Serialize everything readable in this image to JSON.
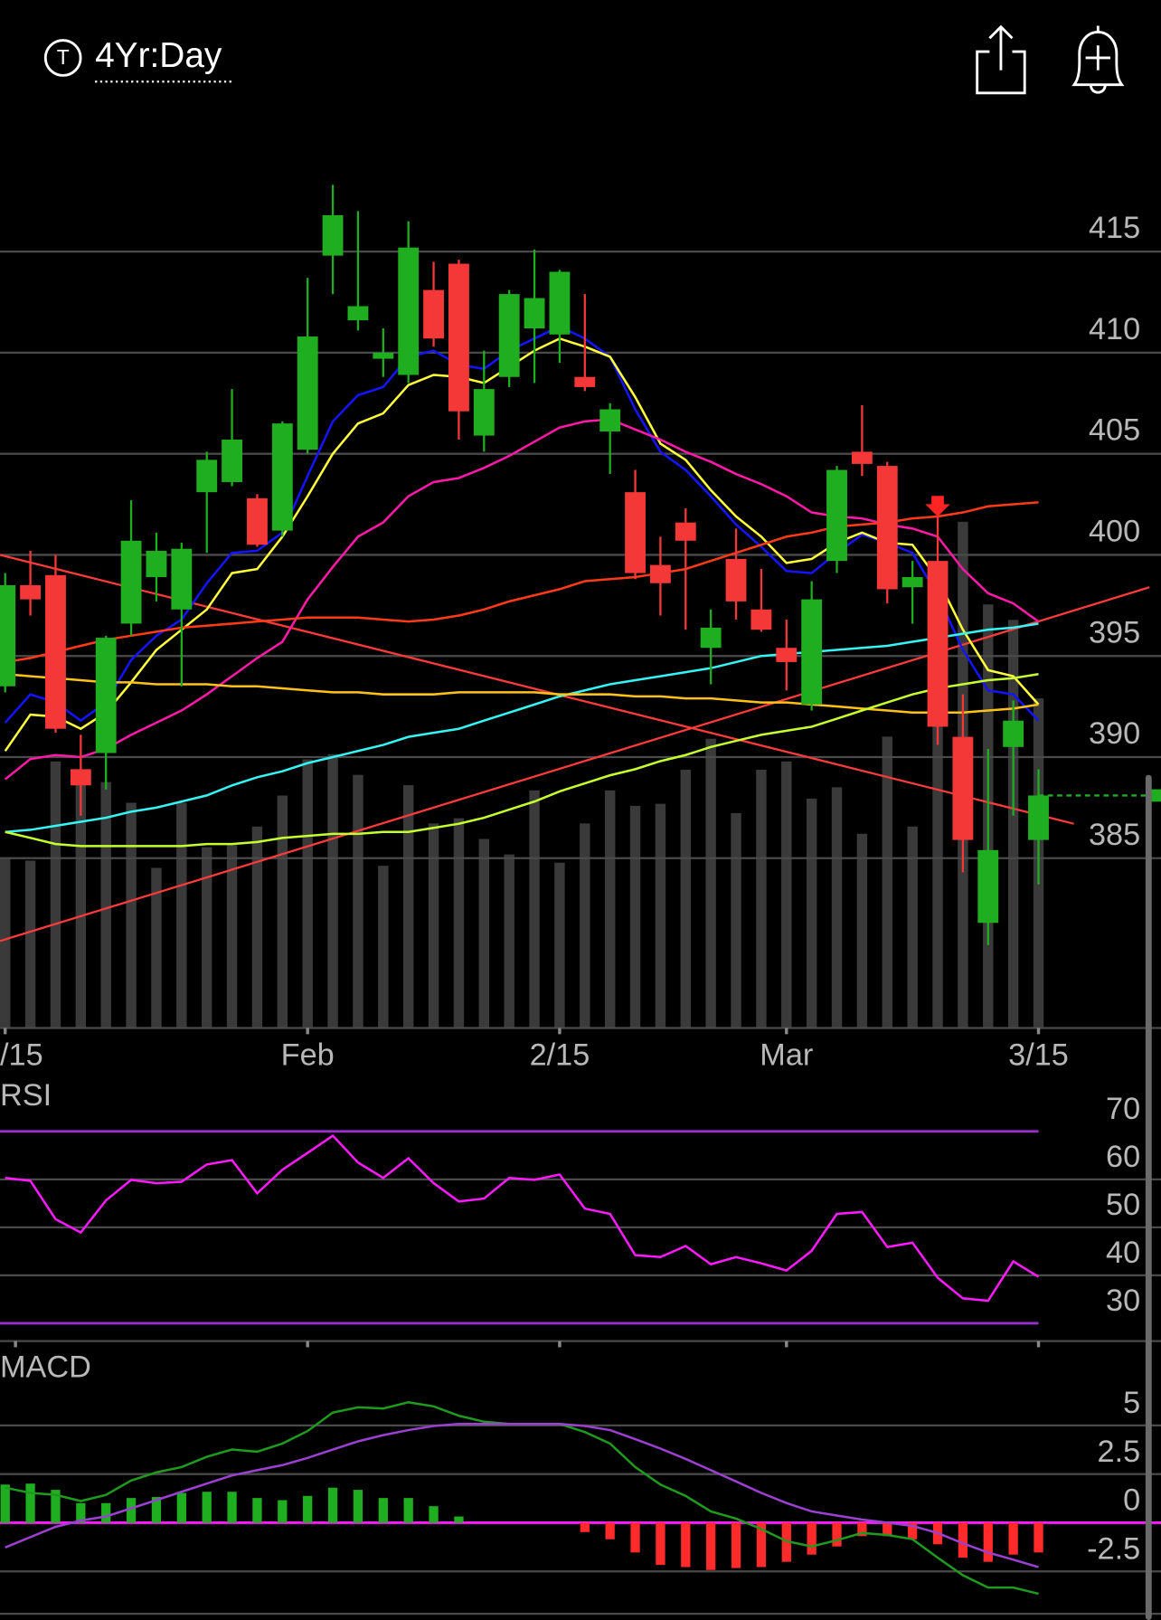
{
  "header": {
    "icon_letter": "T",
    "period": "4Yr:Day"
  },
  "chart_data": [
    {
      "type": "candlestick",
      "categories": [
        "/15",
        null,
        null,
        null,
        null,
        null,
        null,
        null,
        null,
        null,
        null,
        null,
        "Feb",
        null,
        null,
        null,
        null,
        null,
        null,
        null,
        null,
        null,
        "2/15",
        null,
        null,
        null,
        null,
        null,
        null,
        null,
        null,
        "Mar",
        null,
        null,
        null,
        null,
        null,
        null,
        null,
        null,
        null,
        "3/15"
      ],
      "open": [
        393.5,
        398.5,
        399.0,
        389.4,
        390.2,
        396.6,
        398.9,
        397.3,
        403.1,
        403.6,
        402.8,
        401.2,
        405.2,
        414.8,
        411.6,
        409.7,
        408.9,
        413.1,
        414.4,
        405.9,
        408.8,
        411.2,
        410.9,
        408.8,
        406.1,
        403.1,
        399.5,
        401.6,
        395.4,
        399.8,
        397.3,
        395.4,
        392.6,
        399.7,
        405.1,
        404.4,
        398.4,
        399.7,
        391.0,
        381.8,
        390.5,
        385.9
      ],
      "high": [
        399.1,
        400.2,
        400.0,
        391.1,
        396.0,
        402.7,
        401.1,
        400.6,
        405.1,
        408.2,
        403.0,
        406.6,
        413.7,
        418.3,
        417.0,
        411.2,
        416.5,
        414.5,
        414.6,
        410.1,
        413.1,
        415.1,
        414.1,
        412.9,
        407.5,
        404.2,
        400.9,
        402.3,
        397.3,
        401.3,
        399.3,
        396.8,
        398.7,
        404.4,
        407.4,
        404.6,
        399.7,
        402.8,
        393.1,
        390.4,
        392.8,
        389.4
      ],
      "low": [
        393.2,
        397.0,
        391.2,
        387.1,
        388.4,
        396.0,
        397.7,
        393.5,
        400.1,
        403.4,
        400.4,
        400.9,
        405.0,
        412.9,
        411.1,
        408.8,
        408.5,
        410.3,
        405.7,
        405.1,
        408.3,
        408.5,
        409.5,
        408.1,
        404.0,
        398.8,
        397.0,
        396.3,
        393.6,
        396.8,
        396.2,
        393.3,
        392.3,
        399.1,
        403.9,
        397.6,
        396.6,
        390.6,
        384.3,
        380.7,
        387.1,
        383.7
      ],
      "close": [
        398.5,
        397.8,
        391.4,
        388.6,
        395.9,
        400.7,
        400.2,
        400.3,
        404.7,
        405.7,
        400.5,
        406.5,
        410.8,
        416.8,
        412.3,
        410.0,
        415.2,
        410.7,
        407.1,
        408.2,
        412.9,
        412.7,
        414.0,
        408.3,
        407.2,
        399.1,
        398.6,
        400.7,
        396.4,
        397.7,
        396.3,
        394.7,
        397.8,
        404.2,
        404.5,
        398.3,
        398.9,
        391.5,
        385.9,
        385.4,
        391.8,
        388.1
      ],
      "up_color": "#1fae1f",
      "down_color": "#f43838",
      "volume": [
        165,
        162,
        258,
        238,
        238,
        218,
        155,
        218,
        175,
        177,
        195,
        225,
        260,
        265,
        245,
        157,
        235,
        198,
        203,
        183,
        168,
        230,
        160,
        198,
        230,
        215,
        217,
        250,
        280,
        208,
        250,
        258,
        222,
        233,
        188,
        282,
        195,
        295,
        490,
        410,
        395,
        319
      ],
      "volume_lim": [
        0,
        865
      ],
      "volume_color": "#3a3a3a",
      "series": [
        {
          "color": "#1414ff",
          "values": [
            391.7,
            393.1,
            392.7,
            391.8,
            392.7,
            394.8,
            396.0,
            396.8,
            398.6,
            400.1,
            400.2,
            401.1,
            403.9,
            406.6,
            407.9,
            408.3,
            409.8,
            410.1,
            409.4,
            409.2,
            410.1,
            410.7,
            411.3,
            410.7,
            409.8,
            407.2,
            405.1,
            404.2,
            402.9,
            401.5,
            400.4,
            399.2,
            399.1,
            400.1,
            401.0,
            400.6,
            400.1,
            398.0,
            395.3,
            393.3,
            393.1,
            391.8
          ]
        },
        {
          "color": "#ffff3c",
          "values": [
            390.3,
            392.1,
            392.0,
            391.4,
            392.2,
            393.7,
            395.3,
            396.3,
            397.3,
            399.1,
            399.3,
            400.9,
            402.9,
            405.0,
            406.5,
            407.0,
            408.4,
            408.9,
            408.8,
            408.5,
            409.3,
            410.1,
            410.7,
            410.3,
            409.8,
            407.8,
            405.5,
            404.7,
            403.2,
            401.9,
            400.9,
            399.6,
            399.8,
            400.6,
            401.1,
            400.6,
            400.5,
            398.8,
            396.3,
            394.3,
            394.0,
            392.6
          ]
        },
        {
          "color": "#ff1aa8",
          "values": [
            388.9,
            389.9,
            390.1,
            390.0,
            390.4,
            391.1,
            391.7,
            392.3,
            393.1,
            394.0,
            394.9,
            395.7,
            397.8,
            399.4,
            400.9,
            401.6,
            402.9,
            403.6,
            403.8,
            404.3,
            404.9,
            405.6,
            406.3,
            406.6,
            406.7,
            406.2,
            405.7,
            405.1,
            404.6,
            404.0,
            403.5,
            402.9,
            402.1,
            401.9,
            401.8,
            401.5,
            401.3,
            400.9,
            399.3,
            398.1,
            397.6,
            396.7
          ]
        },
        {
          "color": "#ff3a18",
          "values": [
            394.7,
            394.9,
            395.2,
            395.5,
            395.8,
            396.0,
            396.2,
            396.4,
            396.5,
            396.6,
            396.7,
            396.8,
            396.9,
            396.9,
            396.9,
            396.8,
            396.7,
            396.8,
            397.0,
            397.3,
            397.7,
            398.0,
            398.3,
            398.7,
            398.8,
            398.9,
            399.1,
            399.3,
            399.7,
            400.1,
            400.5,
            400.9,
            401.1,
            401.4,
            401.5,
            401.6,
            401.8,
            401.9,
            402.1,
            402.4,
            402.5,
            402.6
          ]
        },
        {
          "color": "#36f4f4",
          "values": [
            386.3,
            386.4,
            386.6,
            386.8,
            387.0,
            387.3,
            387.5,
            387.8,
            388.1,
            388.6,
            389.0,
            389.3,
            389.7,
            390.0,
            390.3,
            390.6,
            391.0,
            391.2,
            391.4,
            391.8,
            392.2,
            392.6,
            393.0,
            393.3,
            393.6,
            393.8,
            394.0,
            394.2,
            394.4,
            394.7,
            395.0,
            395.1,
            395.2,
            395.3,
            395.4,
            395.5,
            395.7,
            395.9,
            396.1,
            396.3,
            396.4,
            396.6
          ]
        },
        {
          "color": "#ffc21a",
          "values": [
            394.1,
            394.0,
            393.9,
            393.8,
            393.7,
            393.7,
            393.6,
            393.6,
            393.6,
            393.5,
            393.5,
            393.4,
            393.3,
            393.2,
            393.2,
            393.1,
            393.1,
            393.1,
            393.2,
            393.2,
            393.2,
            393.2,
            393.1,
            393.1,
            393.1,
            393.0,
            393.0,
            392.9,
            392.9,
            392.8,
            392.7,
            392.7,
            392.6,
            392.5,
            392.4,
            392.3,
            392.2,
            392.2,
            392.2,
            392.3,
            392.4,
            392.6
          ]
        },
        {
          "color": "#c6ff30",
          "values": [
            386.3,
            386.0,
            385.7,
            385.6,
            385.6,
            385.6,
            385.6,
            385.6,
            385.7,
            385.7,
            385.8,
            386.0,
            386.1,
            386.2,
            386.2,
            386.3,
            386.3,
            386.5,
            386.7,
            387.0,
            387.4,
            387.8,
            388.3,
            388.7,
            389.1,
            389.4,
            389.8,
            390.1,
            390.5,
            390.8,
            391.1,
            391.3,
            391.5,
            391.9,
            392.3,
            392.7,
            393.1,
            393.4,
            393.6,
            393.8,
            393.9,
            394.1
          ]
        }
      ],
      "trendlines": [
        {
          "color": "#ff3b3b",
          "x": [
            -0.2,
            42.4
          ],
          "values": [
            400.0,
            386.7
          ]
        },
        {
          "color": "#ff3b3b",
          "x": [
            -0.2,
            45.4
          ],
          "values": [
            380.9,
            398.4
          ]
        }
      ],
      "markers": [
        {
          "x": 37,
          "value": 402.2,
          "color": "#ff2424"
        }
      ],
      "last_price_line": true,
      "last_price_color": "#1fae1f",
      "ylim": [
        376.6,
        420.8
      ],
      "yticks": [
        385,
        390,
        395,
        400,
        405,
        410,
        415
      ],
      "grid": true
    },
    {
      "type": "rsi",
      "title": "RSI",
      "color": "#ff1aff",
      "values": [
        60.3,
        59.7,
        51.7,
        48.9,
        55.6,
        59.9,
        59.2,
        59.5,
        63.1,
        64.0,
        57.1,
        62.0,
        65.5,
        69.1,
        63.5,
        60.3,
        64.4,
        59.2,
        55.4,
        56.0,
        60.3,
        59.9,
        61.0,
        53.9,
        52.8,
        44.2,
        43.8,
        46.1,
        42.3,
        43.8,
        42.5,
        41.0,
        45.1,
        52.8,
        53.2,
        45.9,
        46.8,
        39.5,
        35.2,
        34.7,
        42.9,
        39.7
      ],
      "levels": [
        30,
        70
      ],
      "level_color": "#9a30cc",
      "ylim": [
        26.3,
        79.7
      ],
      "yticks": [
        30,
        40,
        50,
        60,
        70
      ],
      "grid": true
    },
    {
      "type": "macd",
      "title": "MACD",
      "series": [
        {
          "color": "#1f9a1f",
          "values": [
            1.8,
            1.53,
            1.43,
            1.11,
            1.43,
            2.17,
            2.59,
            2.86,
            3.39,
            3.76,
            3.65,
            4.07,
            4.71,
            5.66,
            5.93,
            5.87,
            6.19,
            5.98,
            5.5,
            5.19,
            5.08,
            5.08,
            5.08,
            4.66,
            4.07,
            2.86,
            1.96,
            1.38,
            0.58,
            0.21,
            -0.32,
            -0.95,
            -1.22,
            -0.9,
            -0.53,
            -0.63,
            -0.85,
            -1.8,
            -2.7,
            -3.33,
            -3.33,
            -3.65
          ]
        },
        {
          "color": "#9b40d0",
          "values": [
            -1.27,
            -0.74,
            -0.21,
            0.11,
            0.32,
            0.74,
            1.16,
            1.59,
            2.01,
            2.43,
            2.7,
            2.96,
            3.33,
            3.76,
            4.18,
            4.5,
            4.76,
            4.97,
            5.08,
            5.08,
            5.08,
            5.08,
            5.08,
            4.97,
            4.76,
            4.29,
            3.81,
            3.28,
            2.7,
            2.12,
            1.53,
            1.01,
            0.58,
            0.37,
            0.16,
            0,
            -0.16,
            -0.53,
            -1.06,
            -1.53,
            -1.9,
            -2.28
          ]
        }
      ],
      "histogram": [
        1.96,
        2.01,
        1.69,
        1.01,
        1.01,
        1.27,
        1.32,
        1.53,
        1.59,
        1.59,
        1.27,
        1.16,
        1.38,
        1.8,
        1.69,
        1.27,
        1.27,
        0.85,
        0.32,
        0,
        0,
        0,
        0,
        -0.48,
        -0.85,
        -1.53,
        -2.17,
        -2.28,
        -2.43,
        -2.33,
        -2.28,
        -2.01,
        -1.64,
        -1.22,
        -0.69,
        -0.69,
        -0.85,
        -1.11,
        -1.8,
        -2.01,
        -1.64,
        -1.53
      ],
      "up_color": "#1fae1f",
      "down_color": "#ff2a2a",
      "zero_color": "#ff1aff",
      "ylim": [
        -5.0,
        8.7
      ],
      "yticks": [
        -2.5,
        0,
        2.5,
        5
      ],
      "grid": true
    }
  ]
}
